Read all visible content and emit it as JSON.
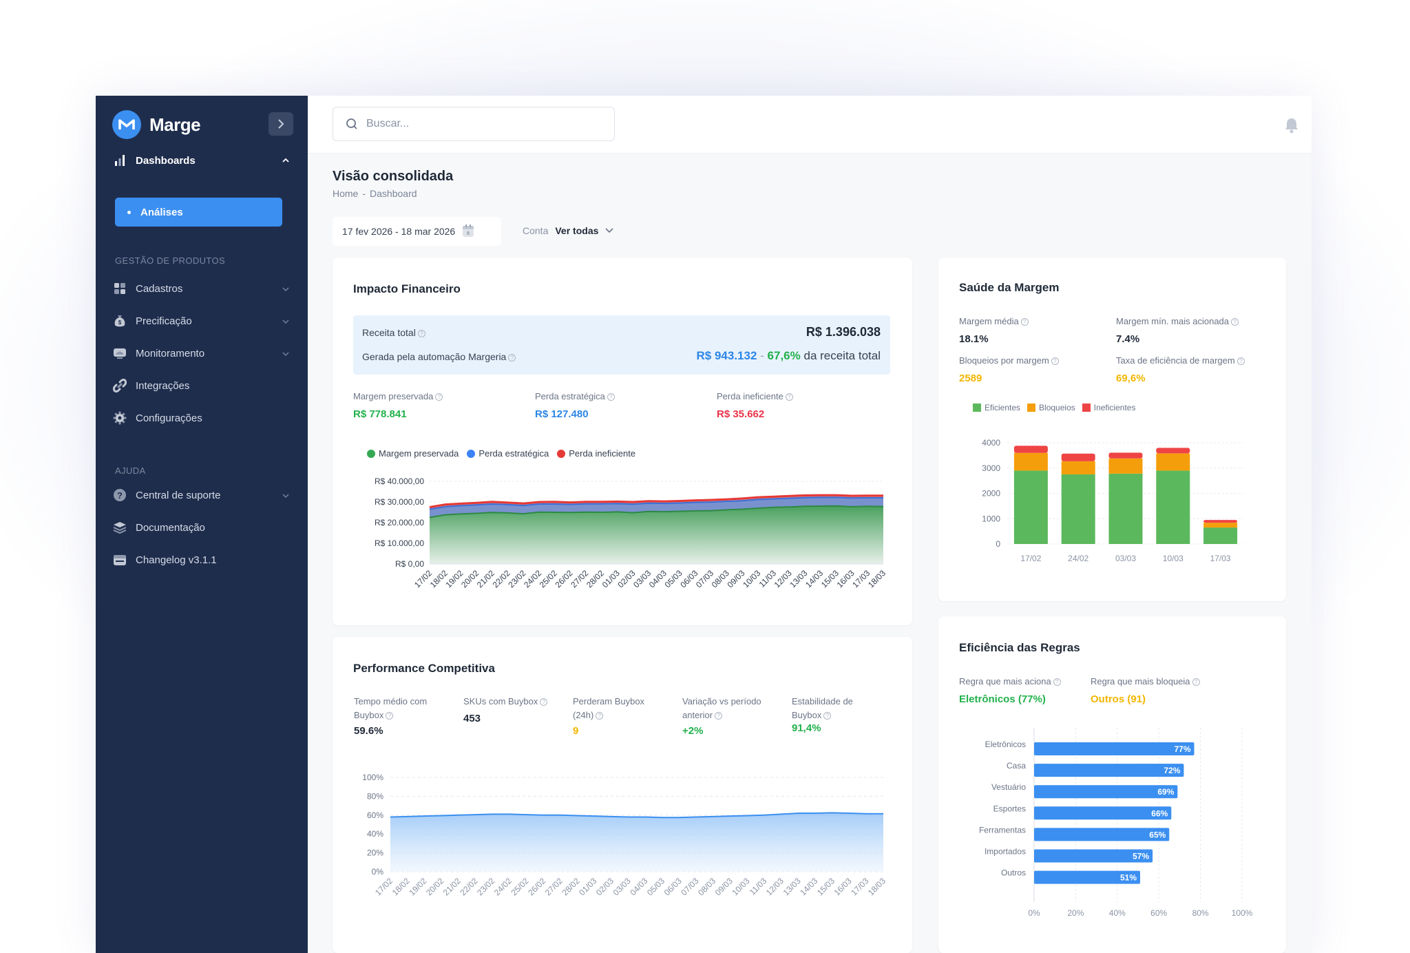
{
  "app": {
    "name": "Marge"
  },
  "sidebar": {
    "dashboards_label": "Dashboards",
    "active_sub_label": "Análises",
    "section_produtos": "GESTÃO DE PRODUTOS",
    "items_produtos": [
      {
        "label": "Cadastros",
        "icon": "grid-icon",
        "has_chevron": true
      },
      {
        "label": "Precificação",
        "icon": "money-bag-icon",
        "has_chevron": true
      },
      {
        "label": "Monitoramento",
        "icon": "monitor-icon",
        "has_chevron": true
      },
      {
        "label": "Integrações",
        "icon": "link-icon",
        "has_chevron": false
      },
      {
        "label": "Configurações",
        "icon": "gear-icon",
        "has_chevron": false
      }
    ],
    "section_ajuda": "AJUDA",
    "items_ajuda": [
      {
        "label": "Central de suporte",
        "icon": "question-icon",
        "has_chevron": true
      },
      {
        "label": "Documentação",
        "icon": "layers-icon",
        "has_chevron": false
      },
      {
        "label": "Changelog v3.1.1",
        "icon": "changelog-icon",
        "has_chevron": false
      }
    ]
  },
  "topbar": {
    "search_placeholder": "Buscar..."
  },
  "header": {
    "title": "Visão consolidada",
    "breadcrumb": [
      "Home",
      "-",
      "Dashboard"
    ],
    "date_range": "17 fev 2026 - 18 mar 2026",
    "account_label": "Conta",
    "account_value": "Ver todas"
  },
  "impacto": {
    "title": "Impacto Financeiro",
    "receita_label": "Receita total",
    "receita_value": "R$ 1.396.038",
    "gerada_label": "Gerada pela automação Margeria",
    "gerada_value": "R$ 943.132",
    "gerada_sep": "-",
    "gerada_pct": "67,6%",
    "gerada_suffix": "da receita total",
    "kpis": [
      {
        "label": "Margem preservada",
        "value": "R$ 778.841",
        "color": "#22b14c"
      },
      {
        "label": "Perda estratégica",
        "value": "R$ 127.480",
        "color": "#2b86e6"
      },
      {
        "label": "Perda ineficiente",
        "value": "R$ 35.662",
        "color": "#e9344a"
      }
    ]
  },
  "saude": {
    "title": "Saúde da Margem",
    "kpis": [
      {
        "label": "Margem média",
        "value": "18.1%",
        "color": "#1f2937"
      },
      {
        "label": "Margem mín. mais acionada",
        "value": "7.4%",
        "color": "#1f2937"
      },
      {
        "label": "Bloqueios por margem",
        "value": "2589",
        "color": "#f2b600"
      },
      {
        "label": "Taxa de eficiência de margem",
        "value": "69,6%",
        "color": "#f2b600"
      }
    ]
  },
  "performance": {
    "title": "Performance Competitiva",
    "kpis": [
      {
        "label1": "Tempo médio com",
        "label2": "Buybox",
        "value": "59.6%",
        "color": "#1f2937"
      },
      {
        "label1": "SKUs com Buybox",
        "label2": "",
        "value": "453",
        "color": "#1f2937"
      },
      {
        "label1": "Perderam Buybox",
        "label2": "(24h)",
        "value": "9",
        "color": "#f2b600"
      },
      {
        "label1": "Variação vs período",
        "label2": "anterior",
        "value": "+2%",
        "color": "#22b14c"
      },
      {
        "label1": "Estabilidade de",
        "label2": "Buybox",
        "value": "91,4%",
        "color": "#22b14c"
      }
    ]
  },
  "eficiencia": {
    "title": "Eficiência das Regras",
    "kpis": [
      {
        "label": "Regra que mais aciona",
        "value": "Eletrônicos (77%)",
        "color": "#22b14c"
      },
      {
        "label": "Regra que mais bloqueia",
        "value": "Outros (91)",
        "color": "#f2b600"
      }
    ]
  },
  "chart_data": [
    {
      "id": "impacto",
      "type": "area",
      "stacked": true,
      "x": [
        "17/02",
        "18/02",
        "19/02",
        "20/02",
        "21/02",
        "22/02",
        "23/02",
        "24/02",
        "25/02",
        "26/02",
        "27/02",
        "28/02",
        "01/03",
        "02/03",
        "03/03",
        "04/03",
        "05/03",
        "06/03",
        "07/03",
        "08/03",
        "09/03",
        "10/03",
        "11/03",
        "12/03",
        "13/03",
        "14/03",
        "15/03",
        "16/03",
        "17/03",
        "18/03"
      ],
      "series": [
        {
          "name": "Margem preservada",
          "color": "#34a853",
          "values": [
            22500,
            23800,
            24200,
            24500,
            24900,
            24700,
            24300,
            25100,
            25000,
            24900,
            25100,
            25000,
            25200,
            24800,
            25400,
            25300,
            25500,
            25700,
            25800,
            26200,
            26500,
            27000,
            27400,
            27600,
            27900,
            28000,
            28100,
            27700,
            27900,
            27800
          ]
        },
        {
          "name": "Perda estratégica",
          "color": "#3b82f6",
          "values": [
            4000,
            3900,
            4000,
            4100,
            4100,
            4000,
            4000,
            3900,
            4000,
            3900,
            4000,
            4100,
            4000,
            4100,
            4000,
            4000,
            4000,
            4100,
            4100,
            4100,
            4100,
            4200,
            4100,
            4200,
            4200,
            4200,
            4100,
            4200,
            4100,
            4200
          ]
        },
        {
          "name": "Perda ineficiente",
          "color": "#e53935",
          "values": [
            1000,
            1100,
            1000,
            1000,
            1100,
            1000,
            1000,
            1000,
            1100,
            1000,
            1000,
            1000,
            1000,
            1100,
            1000,
            1000,
            1000,
            1000,
            1100,
            1000,
            1100,
            1100,
            1100,
            1100,
            1100,
            1100,
            1100,
            1100,
            1100,
            1100
          ]
        }
      ],
      "yticks": [
        "R$ 40.000,00",
        "R$ 30.000,00",
        "R$ 20.000,00",
        "R$ 10.000,00",
        "R$ 0,00"
      ],
      "ylim": [
        0,
        40000
      ]
    },
    {
      "id": "saude",
      "type": "bar",
      "stacked": true,
      "categories": [
        "17/02",
        "24/02",
        "03/03",
        "10/03",
        "17/03"
      ],
      "series": [
        {
          "name": "Eficientes",
          "color": "#5cb85c",
          "values": [
            2900,
            2750,
            2780,
            2900,
            650
          ]
        },
        {
          "name": "Bloqueios",
          "color": "#f59e0b",
          "values": [
            700,
            520,
            600,
            680,
            190
          ]
        },
        {
          "name": "Ineficientes",
          "color": "#ef4444",
          "values": [
            280,
            300,
            230,
            220,
            110
          ]
        }
      ],
      "yticks": [
        "4000",
        "3000",
        "2000",
        "1000",
        "0"
      ],
      "ylim": [
        0,
        4000
      ],
      "legend": "top"
    },
    {
      "id": "performance",
      "type": "area",
      "x": [
        "17/02",
        "18/02",
        "19/02",
        "20/02",
        "21/02",
        "22/02",
        "23/02",
        "24/02",
        "25/02",
        "26/02",
        "27/02",
        "28/02",
        "01/03",
        "02/03",
        "03/03",
        "04/03",
        "05/03",
        "06/03",
        "07/03",
        "08/03",
        "09/03",
        "10/03",
        "11/03",
        "12/03",
        "13/03",
        "14/03",
        "15/03",
        "16/03",
        "17/03",
        "18/03"
      ],
      "series": [
        {
          "name": "Tempo médio com Buybox",
          "color": "#3b8ff0",
          "values": [
            58,
            58.5,
            59,
            59.5,
            60,
            60.5,
            61,
            61,
            60.5,
            60,
            60,
            59.5,
            59,
            58.5,
            58,
            58,
            57.5,
            57.5,
            58,
            58.5,
            59,
            59.5,
            60,
            61,
            62,
            62,
            62.5,
            62,
            61.5,
            61.5
          ]
        }
      ],
      "yticks": [
        "100%",
        "80%",
        "60%",
        "40%",
        "20%",
        "0%"
      ],
      "ylim": [
        0,
        100
      ]
    },
    {
      "id": "eficiencia",
      "type": "bar",
      "orientation": "horizontal",
      "categories": [
        "Eletrônicos",
        "Casa",
        "Vestuário",
        "Esportes",
        "Ferramentas",
        "Importados",
        "Outros"
      ],
      "values": [
        77,
        72,
        69,
        66,
        65,
        57,
        51
      ],
      "value_labels": [
        "77%",
        "72%",
        "69%",
        "66%",
        "65%",
        "57%",
        "51%"
      ],
      "xticks": [
        "0%",
        "20%",
        "40%",
        "60%",
        "80%",
        "100%"
      ],
      "xlim": [
        0,
        100
      ],
      "color": "#3b8ff0"
    }
  ]
}
